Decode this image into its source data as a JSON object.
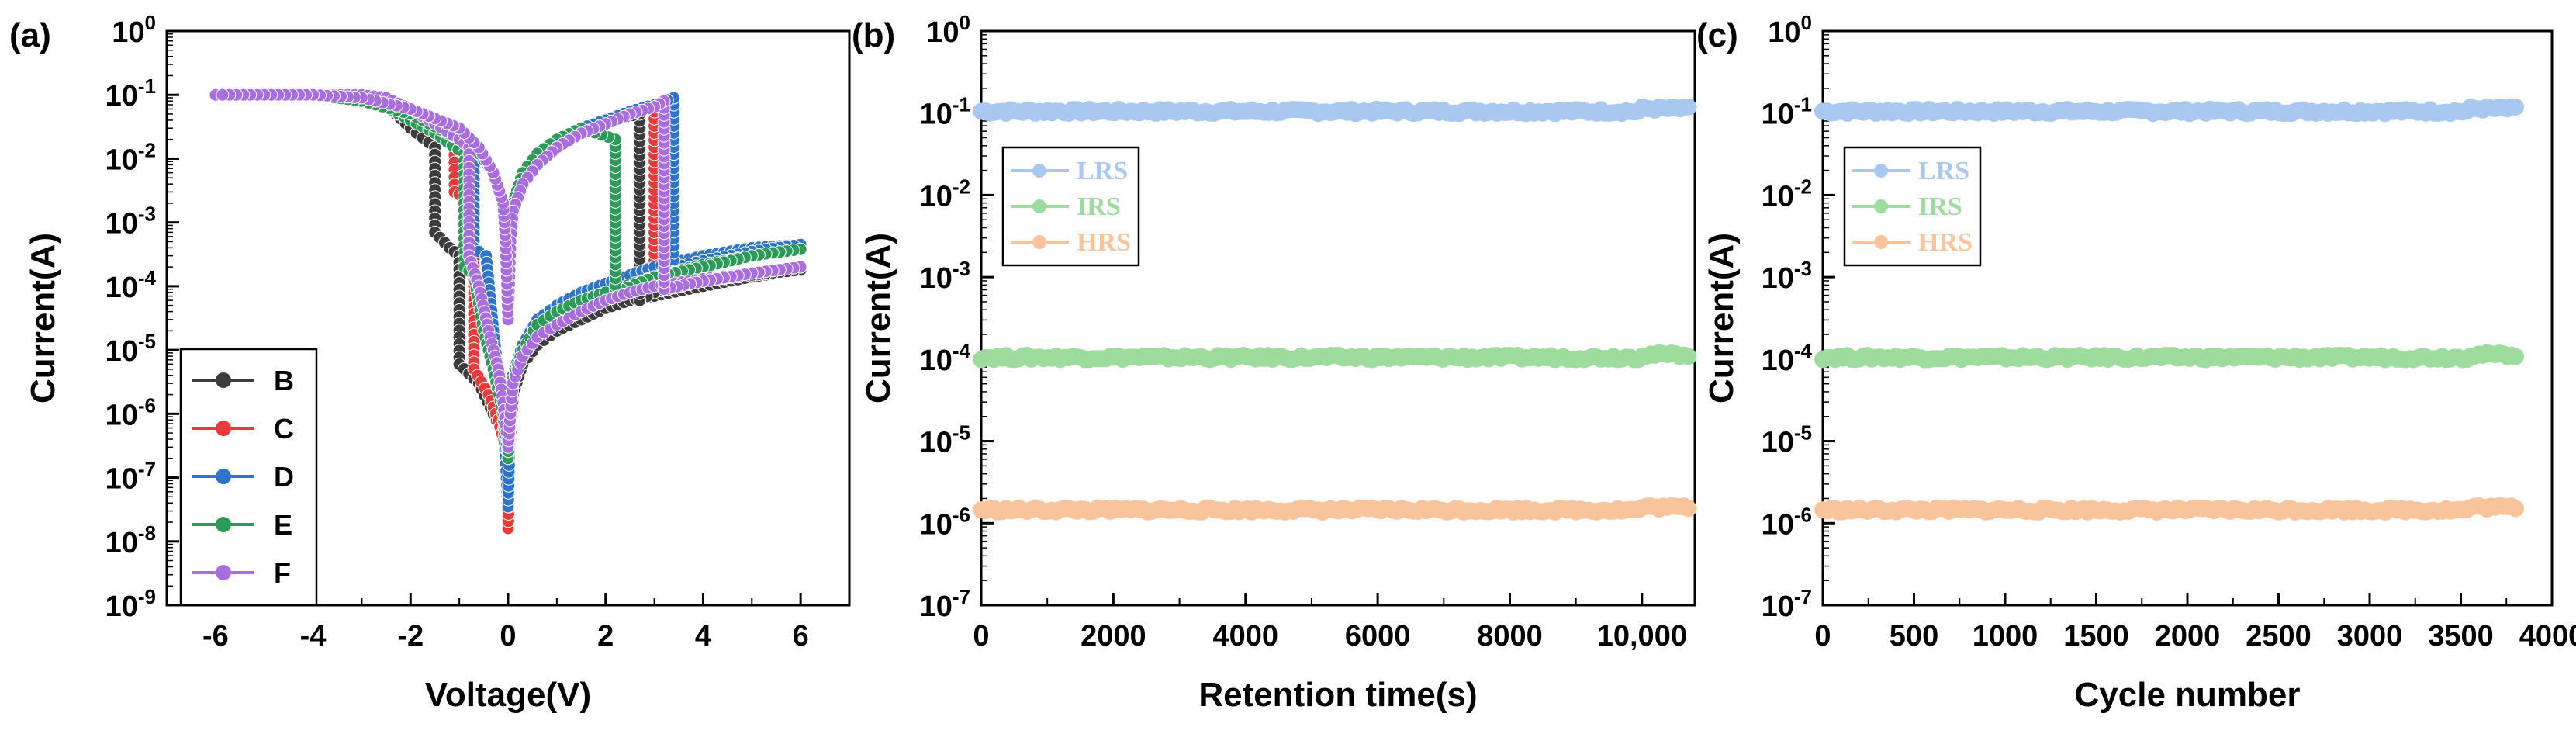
{
  "figure": {
    "panels": [
      {
        "letter": "(a)"
      },
      {
        "letter": "(b)"
      },
      {
        "letter": "(c)"
      }
    ]
  },
  "chart_data": [
    {
      "panel": "(a)",
      "type": "line",
      "title": "",
      "xlabel": "Voltage(V)",
      "ylabel": "Current(A)",
      "xscale": "linear",
      "yscale": "log",
      "xlim": [
        -7,
        7
      ],
      "ylim": [
        1e-09,
        1
      ],
      "xticks": [
        -6,
        -4,
        -2,
        0,
        2,
        4,
        6
      ],
      "xtick_labels": [
        "-6",
        "-4",
        "-2",
        "0",
        "2",
        "4",
        "6"
      ],
      "yticks": [
        1e-09,
        1e-08,
        1e-07,
        1e-06,
        1e-05,
        0.0001,
        0.001,
        0.01,
        0.1,
        1
      ],
      "ytick_labels": [
        {
          "base": "10",
          "exp": "-9"
        },
        {
          "base": "10",
          "exp": "-8"
        },
        {
          "base": "10",
          "exp": "-7"
        },
        {
          "base": "10",
          "exp": "-6"
        },
        {
          "base": "10",
          "exp": "-5"
        },
        {
          "base": "10",
          "exp": "-4"
        },
        {
          "base": "10",
          "exp": "-3"
        },
        {
          "base": "10",
          "exp": "-2"
        },
        {
          "base": "10",
          "exp": "-1"
        },
        {
          "base": "10",
          "exp": "0"
        }
      ],
      "legend_position": "bottom-left",
      "series": [
        {
          "name": "B",
          "color": "#3c3c3c",
          "set_v": 2.7,
          "reset_v": -1.5,
          "x": [
            -6,
            -5,
            -4,
            -3,
            -2.5,
            -2,
            -1.5,
            -1.5,
            -1.2,
            -1.0,
            -1.0,
            -0.6,
            -0.3,
            -0.1,
            0,
            0.05,
            0.1,
            0.3,
            0.6,
            1,
            1.5,
            2,
            2.5,
            3,
            4,
            5,
            6,
            6,
            5,
            4,
            3,
            2.7,
            2.7,
            2,
            1.5,
            1,
            0.6,
            0.3,
            0.1,
            0.05,
            0,
            -0.05,
            -0.1,
            -0.3,
            -0.6,
            -1,
            -2,
            -3,
            -4,
            -5,
            -6
          ],
          "y": [
            0.1,
            0.1,
            0.1,
            0.1,
            0.07,
            0.03,
            0.015,
            0.0007,
            0.0004,
            0.0003,
            6e-06,
            3e-06,
            1e-06,
            5e-07,
            2e-07,
            4e-07,
            2e-06,
            6e-06,
            1.2e-05,
            2e-05,
            3e-05,
            4.5e-05,
            6e-05,
            7e-05,
            0.0001,
            0.00014,
            0.00018,
            0.00018,
            0.00015,
            0.00012,
            8e-05,
            6e-05,
            0.05,
            0.04,
            0.03,
            0.02,
            0.012,
            0.006,
            0.002,
            0.0005,
            3e-05,
            0.0005,
            0.002,
            0.006,
            0.012,
            0.02,
            0.05,
            0.08,
            0.1,
            0.1,
            0.1
          ]
        },
        {
          "name": "C",
          "color": "#e83a3a",
          "set_v": 3.0,
          "reset_v": -1.1,
          "x": [
            -6,
            -5,
            -4,
            -3,
            -2,
            -1.5,
            -1.1,
            -1.1,
            -0.9,
            -0.7,
            -0.7,
            -0.4,
            -0.2,
            -0.05,
            0,
            0.05,
            0.1,
            0.3,
            0.6,
            1,
            1.5,
            2,
            2.5,
            3,
            4,
            5,
            6,
            6,
            5,
            4,
            3.5,
            3,
            3,
            2.5,
            2,
            1.5,
            1,
            0.6,
            0.3,
            0.1,
            0.05,
            0,
            -0.05,
            -0.1,
            -0.3,
            -0.6,
            -1,
            -2,
            -3,
            -4,
            -5,
            -6
          ],
          "y": [
            0.1,
            0.1,
            0.1,
            0.1,
            0.04,
            0.025,
            0.015,
            0.003,
            0.0025,
            0.002,
            5e-06,
            2e-06,
            8e-07,
            3e-07,
            1.6e-08,
            1e-06,
            3e-06,
            8e-06,
            2e-05,
            3e-05,
            5e-05,
            8e-05,
            0.00012,
            0.00016,
            0.00025,
            0.00035,
            0.00045,
            0.00045,
            0.00035,
            0.00025,
            0.0002,
            0.00015,
            0.07,
            0.055,
            0.04,
            0.03,
            0.02,
            0.012,
            0.006,
            0.002,
            0.0005,
            3e-05,
            0.0005,
            0.002,
            0.006,
            0.012,
            0.02,
            0.05,
            0.08,
            0.1,
            0.1,
            0.1
          ]
        },
        {
          "name": "D",
          "color": "#2e74c8",
          "set_v": 3.4,
          "reset_v": -0.7,
          "x": [
            -6,
            -5,
            -4,
            -3,
            -2,
            -1.5,
            -1,
            -0.7,
            -0.7,
            -0.6,
            -0.45,
            -0.3,
            -0.2,
            -0.1,
            0,
            0.05,
            0.1,
            0.3,
            0.6,
            1,
            1.5,
            2,
            2.5,
            3,
            4,
            5,
            6,
            6,
            5,
            4,
            3.4,
            3.4,
            3,
            2.5,
            2,
            1.5,
            1,
            0.6,
            0.3,
            0.1,
            0.05,
            0,
            -0.05,
            -0.1,
            -0.3,
            -0.6,
            -1,
            -2,
            -3,
            -4,
            -5,
            -6
          ],
          "y": [
            0.1,
            0.1,
            0.1,
            0.1,
            0.04,
            0.025,
            0.015,
            0.01,
            0.0004,
            0.00035,
            0.0003,
            2e-05,
            4e-06,
            1e-06,
            3.5e-08,
            1.5e-06,
            4e-06,
            1.2e-05,
            3e-05,
            5e-05,
            8e-05,
            0.00011,
            0.00015,
            0.0002,
            0.0003,
            0.0004,
            0.00045,
            0.00045,
            0.00035,
            0.00025,
            0.0002,
            0.09,
            0.07,
            0.055,
            0.04,
            0.03,
            0.02,
            0.012,
            0.006,
            0.002,
            0.0005,
            3e-05,
            0.0005,
            0.002,
            0.006,
            0.012,
            0.02,
            0.05,
            0.08,
            0.1,
            0.1,
            0.1
          ]
        },
        {
          "name": "E",
          "color": "#2e9a5a",
          "set_v": 2.2,
          "reset_v": -0.9,
          "x": [
            -6,
            -5,
            -4,
            -3,
            -2,
            -1.5,
            -0.9,
            -0.9,
            -0.7,
            -0.5,
            -0.3,
            -0.1,
            0,
            0.05,
            0.1,
            0.3,
            0.6,
            1,
            1.5,
            2,
            2.2,
            3,
            4,
            5,
            6,
            6,
            5,
            4,
            3,
            2.2,
            2.2,
            1.5,
            1,
            0.6,
            0.3,
            0.1,
            0.05,
            0,
            -0.05,
            -0.1,
            -0.3,
            -0.6,
            -1,
            -2,
            -3,
            -4,
            -5,
            -6
          ],
          "y": [
            0.1,
            0.1,
            0.1,
            0.1,
            0.04,
            0.025,
            0.012,
            0.0002,
            0.00015,
            2e-05,
            5e-06,
            1e-06,
            2e-07,
            1.2e-06,
            3.5e-06,
            1e-05,
            2.5e-05,
            4e-05,
            6e-05,
            8e-05,
            9e-05,
            0.00014,
            0.00022,
            0.0003,
            0.00038,
            0.00038,
            0.0003,
            0.0002,
            0.00014,
            8e-05,
            0.02,
            0.03,
            0.02,
            0.012,
            0.006,
            0.002,
            0.0005,
            3e-05,
            0.0005,
            0.002,
            0.006,
            0.012,
            0.02,
            0.05,
            0.08,
            0.1,
            0.1,
            0.1
          ]
        },
        {
          "name": "F",
          "color": "#a86ee0",
          "set_v": 3.2,
          "reset_v": -0.8,
          "x": [
            -6,
            -5,
            -4,
            -3,
            -2.5,
            -2,
            -1.5,
            -1,
            -0.8,
            -0.8,
            -0.6,
            -0.4,
            -0.2,
            -0.1,
            0,
            0.05,
            0.1,
            0.3,
            0.6,
            1,
            1.5,
            2,
            2.5,
            3,
            4,
            5,
            6,
            6,
            5,
            4,
            3.2,
            3.2,
            3,
            2.5,
            2,
            1.5,
            1,
            0.6,
            0.3,
            0.1,
            0.05,
            0,
            -0.05,
            -0.1,
            -0.3,
            -0.6,
            -1,
            -2,
            -3,
            -4,
            -5,
            -6
          ],
          "y": [
            0.1,
            0.1,
            0.1,
            0.1,
            0.09,
            0.06,
            0.035,
            0.02,
            0.015,
            0.0003,
            0.0001,
            2e-05,
            5e-06,
            1.5e-06,
            3e-07,
            1e-06,
            3e-06,
            8e-06,
            1.6e-05,
            2.5e-05,
            4e-05,
            6e-05,
            8e-05,
            0.0001,
            0.00013,
            0.00016,
            0.0002,
            0.0002,
            0.00016,
            0.00012,
            9e-05,
            0.08,
            0.065,
            0.05,
            0.035,
            0.025,
            0.015,
            0.008,
            0.004,
            0.0015,
            0.0005,
            3e-05,
            0.0005,
            0.002,
            0.006,
            0.015,
            0.03,
            0.06,
            0.09,
            0.1,
            0.1,
            0.1
          ]
        }
      ]
    },
    {
      "panel": "(b)",
      "type": "scatter",
      "title": "",
      "xlabel": "Retention time(s)",
      "ylabel": "Current(A)",
      "xscale": "linear",
      "yscale": "log",
      "xlim": [
        0,
        10800
      ],
      "ylim": [
        1e-07,
        1
      ],
      "xticks": [
        0,
        2000,
        4000,
        6000,
        8000,
        10000
      ],
      "xtick_labels": [
        "0",
        "2000",
        "4000",
        "6000",
        "8000",
        "10,000"
      ],
      "yticks": [
        1e-07,
        1e-06,
        1e-05,
        0.0001,
        0.001,
        0.01,
        0.1,
        1
      ],
      "ytick_labels": [
        {
          "base": "10",
          "exp": "-7"
        },
        {
          "base": "10",
          "exp": "-6"
        },
        {
          "base": "10",
          "exp": "-5"
        },
        {
          "base": "10",
          "exp": "-4"
        },
        {
          "base": "10",
          "exp": "-3"
        },
        {
          "base": "10",
          "exp": "-2"
        },
        {
          "base": "10",
          "exp": "-1"
        },
        {
          "base": "10",
          "exp": "0"
        }
      ],
      "legend_position": "top-left",
      "series": [
        {
          "name": "LRS",
          "color": "#a8c8f0",
          "x_range": [
            0,
            10700
          ],
          "level": 0.105
        },
        {
          "name": "IRS",
          "color": "#9edc9e",
          "x_range": [
            0,
            10700
          ],
          "level": 0.000105
        },
        {
          "name": "HRS",
          "color": "#f8c49c",
          "x_range": [
            0,
            10700
          ],
          "level": 1.45e-06
        }
      ]
    },
    {
      "panel": "(c)",
      "type": "scatter",
      "title": "",
      "xlabel": "Cycle number",
      "ylabel": "Current(A)",
      "xscale": "linear",
      "yscale": "log",
      "xlim": [
        0,
        4000
      ],
      "ylim": [
        1e-07,
        1
      ],
      "xticks": [
        0,
        500,
        1000,
        1500,
        2000,
        2500,
        3000,
        3500,
        4000
      ],
      "xtick_labels": [
        "0",
        "500",
        "1000",
        "1500",
        "2000",
        "2500",
        "3000",
        "3500",
        "4000"
      ],
      "yticks": [
        1e-07,
        1e-06,
        1e-05,
        0.0001,
        0.001,
        0.01,
        0.1,
        1
      ],
      "ytick_labels": [
        {
          "base": "10",
          "exp": "-7"
        },
        {
          "base": "10",
          "exp": "-6"
        },
        {
          "base": "10",
          "exp": "-5"
        },
        {
          "base": "10",
          "exp": "-4"
        },
        {
          "base": "10",
          "exp": "-3"
        },
        {
          "base": "10",
          "exp": "-2"
        },
        {
          "base": "10",
          "exp": "-1"
        },
        {
          "base": "10",
          "exp": "0"
        }
      ],
      "legend_position": "top-left",
      "series": [
        {
          "name": "LRS",
          "color": "#a8c8f0",
          "x_range": [
            0,
            3800
          ],
          "level": 0.105
        },
        {
          "name": "IRS",
          "color": "#9edc9e",
          "x_range": [
            0,
            3800
          ],
          "level": 0.000105
        },
        {
          "name": "HRS",
          "color": "#f8c49c",
          "x_range": [
            0,
            3800
          ],
          "level": 1.45e-06
        }
      ]
    }
  ]
}
